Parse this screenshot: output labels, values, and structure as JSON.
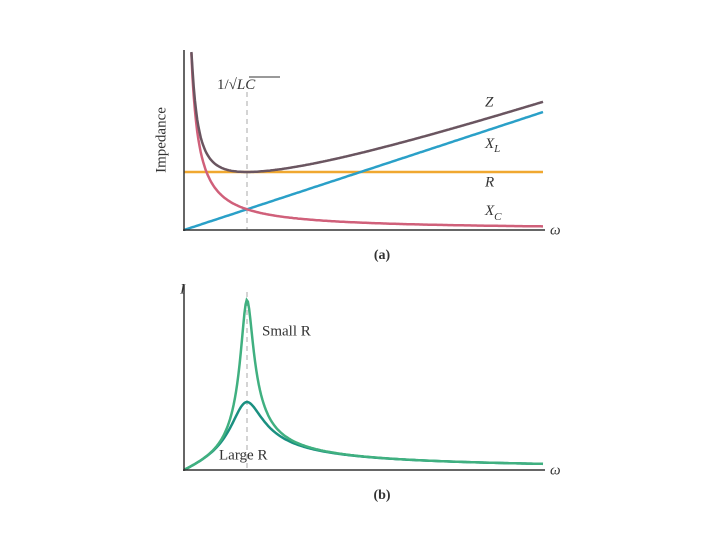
{
  "panel_a": {
    "y_label": "Impedance",
    "resonance": "1/√",
    "resonance_arg": "LC",
    "x_label": "ω",
    "caption": "(a)",
    "curves": [
      {
        "name": "Z"
      },
      {
        "name": "X",
        "sub": "L"
      },
      {
        "name": "R"
      },
      {
        "name": "X",
        "sub": "C"
      }
    ]
  },
  "panel_b": {
    "y_label": "I",
    "x_label": "ω",
    "caption": "(b)",
    "curves": [
      {
        "name": "Small R"
      },
      {
        "name": "Large R"
      }
    ]
  }
}
